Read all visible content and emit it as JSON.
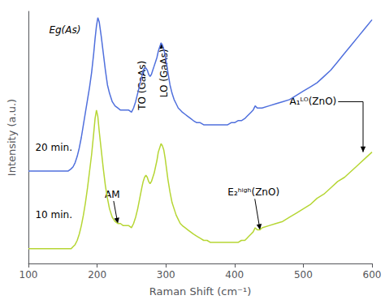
{
  "chart_data": {
    "type": "line",
    "xlabel": "Raman Shift (cm⁻¹)",
    "ylabel": "Intensity (a.u.)",
    "xlim": [
      100,
      600
    ],
    "ylim": [
      -0.05,
      1.15
    ],
    "xticks": [
      100,
      200,
      300,
      400,
      500,
      600
    ],
    "tick_labels": "x",
    "grid": false,
    "x": [
      100,
      110,
      120,
      130,
      140,
      150,
      155,
      158,
      162,
      165,
      168,
      171,
      174,
      177,
      180,
      183,
      186,
      189,
      192,
      195,
      197,
      199,
      201,
      203,
      206,
      209,
      212,
      215,
      218,
      222,
      226,
      230,
      234,
      238,
      242,
      246,
      250,
      253,
      256,
      259,
      262,
      265,
      267,
      269,
      271,
      273,
      275,
      277,
      279,
      281,
      283,
      285,
      287,
      289,
      291,
      293,
      295,
      297,
      299,
      301,
      303,
      306,
      309,
      312,
      315,
      318,
      321,
      324,
      328,
      332,
      336,
      340,
      345,
      350,
      355,
      360,
      365,
      370,
      375,
      380,
      385,
      390,
      395,
      400,
      405,
      410,
      415,
      418,
      421,
      424,
      427,
      430,
      433,
      437,
      440,
      450,
      460,
      470,
      480,
      490,
      500,
      510,
      520,
      530,
      540,
      550,
      560,
      570,
      580,
      590,
      600
    ],
    "series": [
      {
        "values": [
          0.39,
          0.39,
          0.39,
          0.39,
          0.39,
          0.39,
          0.39,
          0.39,
          0.4,
          0.41,
          0.43,
          0.46,
          0.5,
          0.55,
          0.61,
          0.67,
          0.73,
          0.79,
          0.86,
          0.95,
          1.02,
          1.08,
          1.12,
          1.1,
          1.03,
          0.95,
          0.87,
          0.8,
          0.76,
          0.72,
          0.7,
          0.69,
          0.68,
          0.68,
          0.68,
          0.68,
          0.67,
          0.69,
          0.72,
          0.76,
          0.8,
          0.84,
          0.87,
          0.88,
          0.88,
          0.87,
          0.85,
          0.84,
          0.85,
          0.87,
          0.89,
          0.91,
          0.93,
          0.96,
          0.98,
          1.0,
          0.99,
          0.97,
          0.94,
          0.9,
          0.86,
          0.8,
          0.76,
          0.73,
          0.71,
          0.69,
          0.68,
          0.67,
          0.66,
          0.65,
          0.64,
          0.63,
          0.62,
          0.62,
          0.61,
          0.61,
          0.61,
          0.61,
          0.61,
          0.61,
          0.61,
          0.61,
          0.62,
          0.62,
          0.63,
          0.63,
          0.64,
          0.65,
          0.66,
          0.67,
          0.68,
          0.7,
          0.69,
          0.69,
          0.69,
          0.7,
          0.71,
          0.72,
          0.73,
          0.75,
          0.77,
          0.79,
          0.81,
          0.84,
          0.87,
          0.91,
          0.95,
          0.99,
          1.03,
          1.07,
          1.11
        ]
      },
      {
        "values": [
          0.02,
          0.02,
          0.02,
          0.02,
          0.02,
          0.02,
          0.02,
          0.02,
          0.02,
          0.03,
          0.04,
          0.06,
          0.09,
          0.13,
          0.18,
          0.24,
          0.31,
          0.39,
          0.47,
          0.57,
          0.64,
          0.68,
          0.65,
          0.58,
          0.49,
          0.4,
          0.32,
          0.26,
          0.21,
          0.17,
          0.15,
          0.14,
          0.14,
          0.13,
          0.13,
          0.13,
          0.12,
          0.14,
          0.17,
          0.21,
          0.26,
          0.31,
          0.34,
          0.36,
          0.37,
          0.36,
          0.34,
          0.33,
          0.34,
          0.36,
          0.38,
          0.41,
          0.44,
          0.48,
          0.5,
          0.52,
          0.51,
          0.49,
          0.45,
          0.4,
          0.35,
          0.29,
          0.24,
          0.21,
          0.18,
          0.16,
          0.14,
          0.13,
          0.12,
          0.11,
          0.1,
          0.09,
          0.08,
          0.07,
          0.06,
          0.06,
          0.05,
          0.05,
          0.05,
          0.05,
          0.05,
          0.05,
          0.05,
          0.05,
          0.05,
          0.06,
          0.06,
          0.07,
          0.08,
          0.09,
          0.1,
          0.12,
          0.11,
          0.11,
          0.12,
          0.13,
          0.14,
          0.15,
          0.17,
          0.19,
          0.21,
          0.23,
          0.26,
          0.28,
          0.31,
          0.34,
          0.36,
          0.39,
          0.42,
          0.45,
          0.48
        ]
      }
    ],
    "annotations": [
      {
        "text": "Eg(As)",
        "x": 130,
        "y": 1.04
      },
      {
        "text": "TO (GaAs)",
        "x": 265,
        "y": 0.68,
        "arrow_x": 271,
        "arrow_y": 0.88
      },
      {
        "text": "LO (GaAs)",
        "x": 297,
        "y": 0.74,
        "arrow_x": 293,
        "arrow_y": 1.0
      },
      {
        "text": "AM",
        "x": 222,
        "y": 0.255,
        "arrow_x": 230,
        "arrow_y": 0.14
      },
      {
        "text": "20 min.",
        "x": 110,
        "y": 0.5
      },
      {
        "text": "10 min.",
        "x": 110,
        "y": 0.18
      },
      {
        "text": "A₁ᴸᴼ(ZnO)",
        "x": 480,
        "y": 0.72,
        "arrow_x": 587,
        "arrow_y": 0.48
      },
      {
        "text": "E₂ʰⁱᵍʰ(ZnO)",
        "x": 390,
        "y": 0.265,
        "arrow_x": 437,
        "arrow_y": 0.11
      }
    ]
  }
}
